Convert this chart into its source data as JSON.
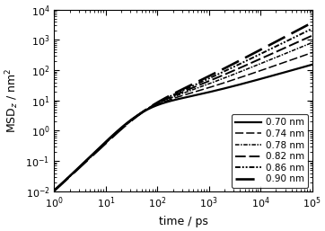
{
  "xlabel": "time / ps",
  "ylabel": "MSD$_z$ / nm$^2$",
  "xlim": [
    1,
    100000.0
  ],
  "ylim": [
    0.01,
    10000.0
  ],
  "labels": [
    "0.70 nm",
    "0.74 nm",
    "0.78 nm",
    "0.82 nm",
    "0.86 nm",
    "0.90 nm"
  ],
  "linestyles": [
    [
      "-",
      1.6
    ],
    [
      [
        0,
        6,
        2
      ],
      1.1
    ],
    [
      [
        0,
        3,
        1,
        1
      ],
      1.1
    ],
    [
      [
        0,
        6,
        2
      ],
      1.4
    ],
    [
      [
        0,
        3,
        1,
        1,
        1,
        1
      ],
      1.4
    ],
    [
      [
        0,
        8,
        3
      ],
      1.9
    ]
  ],
  "t_cross": 50.0,
  "msd_at_1": 0.01,
  "alpha_early": 1.0,
  "msd_cross": 5.0,
  "late_slopes": [
    0.48,
    0.6,
    0.7,
    0.77,
    0.84,
    0.9
  ],
  "smooth_n": 3.0,
  "legend_loc": "lower right",
  "legend_fontsize": 7.5,
  "tick_fontsize": 8,
  "label_fontsize": 9
}
